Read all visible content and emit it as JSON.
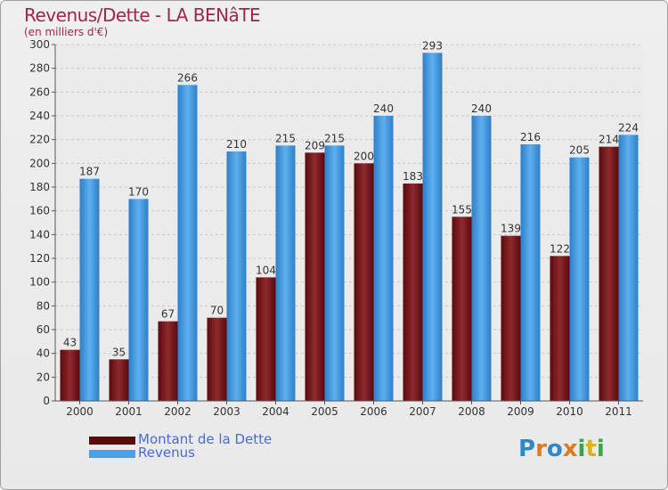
{
  "header": {
    "title": "Revenus/Dette - LA BENâTE",
    "subtitle": "(en milliers d'€)"
  },
  "colors": {
    "dette": "#7a1418",
    "revenus": "#4aa0e6",
    "title": "#a02550",
    "legend_text": "#4a6ad8"
  },
  "legend": [
    {
      "label": "Montant de la Dette",
      "color": "#5a0a0a"
    },
    {
      "label": "Revenus",
      "color": "#4aa0e6"
    }
  ],
  "logo": {
    "letters": [
      {
        "ch": "P",
        "color": "#2f89c8"
      },
      {
        "ch": "r",
        "color": "#e07a20"
      },
      {
        "ch": "o",
        "color": "#2f89c8"
      },
      {
        "ch": "x",
        "color": "#e07a20"
      },
      {
        "ch": "i",
        "color": "#3aa544"
      },
      {
        "ch": "t",
        "color": "#e0b020"
      },
      {
        "ch": "i",
        "color": "#3aa544"
      }
    ]
  },
  "chart_data": {
    "type": "bar",
    "categories": [
      "2000",
      "2001",
      "2002",
      "2003",
      "2004",
      "2005",
      "2006",
      "2007",
      "2008",
      "2009",
      "2010",
      "2011"
    ],
    "series": [
      {
        "name": "Montant de la Dette",
        "values": [
          43,
          35,
          67,
          70,
          104,
          209,
          200,
          183,
          155,
          139,
          122,
          214
        ]
      },
      {
        "name": "Revenus",
        "values": [
          187,
          170,
          266,
          210,
          215,
          215,
          240,
          293,
          240,
          216,
          205,
          224
        ]
      }
    ],
    "ylim": [
      0,
      300
    ],
    "yticks": [
      0,
      20,
      40,
      60,
      80,
      100,
      120,
      140,
      160,
      180,
      200,
      220,
      240,
      260,
      280,
      300
    ],
    "grid": true,
    "legend_position": "bottom-left"
  }
}
